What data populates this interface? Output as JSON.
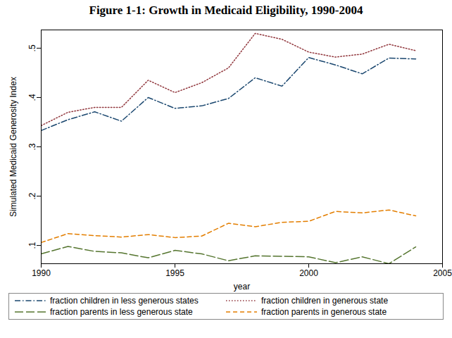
{
  "chart_data": {
    "type": "line",
    "title": "Figure 1-1: Growth in Medicaid Eligibility, 1990-2004",
    "x_label": "year",
    "y_label": "Simulated Medicaid Generosity Index",
    "x": [
      1990,
      1991,
      1992,
      1993,
      1994,
      1995,
      1996,
      1997,
      1998,
      1999,
      2000,
      2001,
      2002,
      2003,
      2004
    ],
    "xlim": [
      1990,
      2005
    ],
    "xticks": [
      {
        "value": 1990,
        "label": "1990"
      },
      {
        "value": 1995,
        "label": "1995"
      },
      {
        "value": 2000,
        "label": "2000"
      },
      {
        "value": 2005,
        "label": "2005"
      }
    ],
    "ylim": [
      0.063,
      0.537
    ],
    "yticks": [
      {
        "value": 0.1,
        "label": ".1"
      },
      {
        "value": 0.2,
        "label": ".2"
      },
      {
        "value": 0.3,
        "label": ".3"
      },
      {
        "value": 0.4,
        "label": ".4"
      },
      {
        "value": 0.5,
        "label": ".5"
      }
    ],
    "grid": false,
    "legend": "bottom",
    "series": [
      {
        "name": "fraction children  in less generous states",
        "color": "#1a476f",
        "line_style": "dash_dot",
        "values": [
          0.333,
          0.355,
          0.371,
          0.352,
          0.4,
          0.378,
          0.383,
          0.398,
          0.44,
          0.423,
          0.481,
          0.466,
          0.448,
          0.48,
          0.478
        ]
      },
      {
        "name": "fraction children in generous state",
        "color": "#90353b",
        "line_style": "dotted",
        "values": [
          0.343,
          0.37,
          0.38,
          0.38,
          0.435,
          0.41,
          0.43,
          0.46,
          0.53,
          0.518,
          0.492,
          0.482,
          0.488,
          0.508,
          0.495
        ]
      },
      {
        "name": "fraction parents in less generous state",
        "color": "#55752f",
        "line_style": "long_dash",
        "values": [
          0.083,
          0.098,
          0.088,
          0.085,
          0.075,
          0.09,
          0.083,
          0.069,
          0.079,
          0.078,
          0.077,
          0.065,
          0.077,
          0.063,
          0.097
        ]
      },
      {
        "name": "fraction parents in generous state",
        "color": "#e37e00",
        "line_style": "dashed",
        "values": [
          0.106,
          0.124,
          0.12,
          0.117,
          0.122,
          0.116,
          0.119,
          0.145,
          0.138,
          0.147,
          0.149,
          0.169,
          0.166,
          0.172,
          0.16
        ]
      }
    ]
  }
}
